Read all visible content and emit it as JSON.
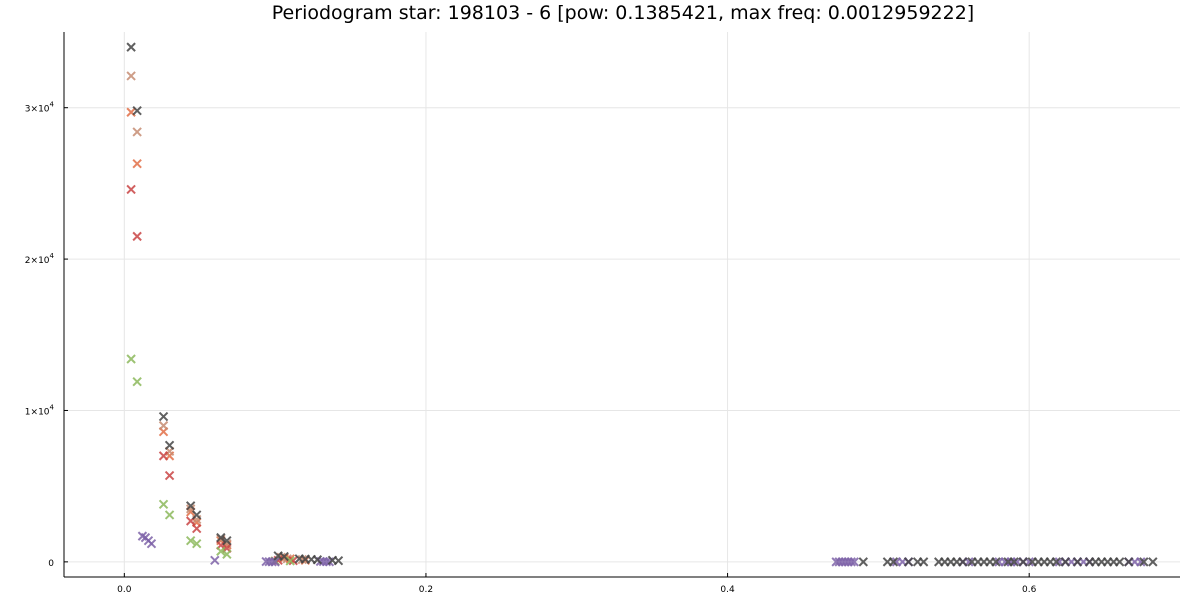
{
  "chart_data": {
    "type": "scatter",
    "title": "Periodogram star: 198103 - 6 [pow: 0.1385421, max freq: 0.0012959222]",
    "xlabel": "",
    "ylabel": "",
    "xlim": [
      -0.04,
      0.7
    ],
    "ylim": [
      -1000,
      35000
    ],
    "grid": true,
    "legend": "none",
    "marker": "x",
    "x_ticks": [
      {
        "value": 0.0,
        "label": "0.0"
      },
      {
        "value": 0.2,
        "label": "0.2"
      },
      {
        "value": 0.4,
        "label": "0.4"
      },
      {
        "value": 0.6,
        "label": "0.6"
      }
    ],
    "y_ticks": [
      {
        "value": 0,
        "mantissa": "0",
        "exponent": ""
      },
      {
        "value": 10000,
        "mantissa": "1×10",
        "exponent": "4"
      },
      {
        "value": 20000,
        "mantissa": "2×10",
        "exponent": "4"
      },
      {
        "value": 30000,
        "mantissa": "3×10",
        "exponent": "4"
      }
    ],
    "series": [
      {
        "color": "#e26f46",
        "points": [
          [
            0.0045,
            29700
          ],
          [
            0.0085,
            26300
          ],
          [
            0.026,
            8600
          ],
          [
            0.03,
            7000
          ],
          [
            0.044,
            3300
          ],
          [
            0.048,
            2600
          ],
          [
            0.064,
            1400
          ],
          [
            0.068,
            1100
          ],
          [
            0.1,
            50
          ],
          [
            0.106,
            250
          ],
          [
            0.11,
            200
          ],
          [
            0.12,
            100
          ]
        ]
      },
      {
        "color": "#c68c72",
        "points": [
          [
            0.0045,
            32100
          ],
          [
            0.0085,
            28400
          ],
          [
            0.026,
            9000
          ],
          [
            0.03,
            7300
          ],
          [
            0.044,
            3500
          ],
          [
            0.048,
            2800
          ],
          [
            0.064,
            1500
          ],
          [
            0.068,
            1200
          ],
          [
            0.104,
            300
          ],
          [
            0.108,
            200
          ],
          [
            0.118,
            150
          ]
        ]
      },
      {
        "color": "#c94444",
        "points": [
          [
            0.0045,
            24600
          ],
          [
            0.0085,
            21500
          ],
          [
            0.026,
            7000
          ],
          [
            0.03,
            5700
          ],
          [
            0.044,
            2700
          ],
          [
            0.048,
            2200
          ],
          [
            0.064,
            1100
          ],
          [
            0.068,
            900
          ],
          [
            0.102,
            100
          ],
          [
            0.112,
            80
          ]
        ]
      },
      {
        "color": "#8cb85c",
        "points": [
          [
            0.0045,
            13400
          ],
          [
            0.0085,
            11900
          ],
          [
            0.026,
            3800
          ],
          [
            0.03,
            3100
          ],
          [
            0.044,
            1400
          ],
          [
            0.048,
            1200
          ],
          [
            0.064,
            700
          ],
          [
            0.068,
            500
          ],
          [
            0.1,
            50
          ],
          [
            0.11,
            60
          ]
        ]
      },
      {
        "color": "#7e63a8",
        "points": [
          [
            0.012,
            1700
          ],
          [
            0.014,
            1600
          ],
          [
            0.016,
            1400
          ],
          [
            0.018,
            1200
          ],
          [
            0.06,
            100
          ],
          [
            0.094,
            20
          ],
          [
            0.096,
            10
          ],
          [
            0.098,
            5
          ],
          [
            0.1,
            0
          ],
          [
            0.13,
            30
          ],
          [
            0.132,
            20
          ],
          [
            0.134,
            10
          ],
          [
            0.136,
            5
          ],
          [
            0.472,
            0
          ],
          [
            0.474,
            0
          ],
          [
            0.476,
            0
          ],
          [
            0.478,
            0
          ],
          [
            0.48,
            0
          ],
          [
            0.482,
            0
          ],
          [
            0.484,
            0
          ],
          [
            0.512,
            0
          ],
          [
            0.516,
            0
          ],
          [
            0.52,
            0
          ],
          [
            0.556,
            0
          ],
          [
            0.56,
            0
          ],
          [
            0.58,
            0
          ],
          [
            0.584,
            0
          ],
          [
            0.588,
            0
          ],
          [
            0.592,
            0
          ],
          [
            0.596,
            0
          ],
          [
            0.6,
            0
          ],
          [
            0.62,
            0
          ],
          [
            0.624,
            0
          ],
          [
            0.628,
            0
          ],
          [
            0.632,
            0
          ],
          [
            0.636,
            0
          ],
          [
            0.64,
            0
          ],
          [
            0.666,
            0
          ],
          [
            0.67,
            0
          ],
          [
            0.674,
            0
          ]
        ]
      },
      {
        "color": "#444444",
        "points": [
          [
            0.0045,
            34000
          ],
          [
            0.0085,
            29800
          ],
          [
            0.026,
            9600
          ],
          [
            0.03,
            7700
          ],
          [
            0.044,
            3700
          ],
          [
            0.048,
            3100
          ],
          [
            0.064,
            1600
          ],
          [
            0.068,
            1400
          ],
          [
            0.102,
            400
          ],
          [
            0.106,
            350
          ],
          [
            0.116,
            200
          ],
          [
            0.12,
            180
          ],
          [
            0.124,
            160
          ],
          [
            0.128,
            140
          ],
          [
            0.138,
            100
          ],
          [
            0.142,
            80
          ],
          [
            0.49,
            0
          ],
          [
            0.506,
            0
          ],
          [
            0.51,
            0
          ],
          [
            0.52,
            0
          ],
          [
            0.526,
            0
          ],
          [
            0.53,
            0
          ],
          [
            0.54,
            0
          ],
          [
            0.544,
            0
          ],
          [
            0.548,
            0
          ],
          [
            0.552,
            0
          ],
          [
            0.556,
            0
          ],
          [
            0.562,
            0
          ],
          [
            0.566,
            0
          ],
          [
            0.57,
            0
          ],
          [
            0.574,
            0
          ],
          [
            0.578,
            0
          ],
          [
            0.586,
            0
          ],
          [
            0.59,
            0
          ],
          [
            0.596,
            0
          ],
          [
            0.602,
            0
          ],
          [
            0.606,
            0
          ],
          [
            0.61,
            0
          ],
          [
            0.614,
            0
          ],
          [
            0.618,
            0
          ],
          [
            0.624,
            0
          ],
          [
            0.632,
            0
          ],
          [
            0.64,
            0
          ],
          [
            0.644,
            0
          ],
          [
            0.648,
            0
          ],
          [
            0.652,
            0
          ],
          [
            0.656,
            0
          ],
          [
            0.66,
            0
          ],
          [
            0.666,
            0
          ],
          [
            0.676,
            0
          ],
          [
            0.682,
            0
          ]
        ]
      }
    ]
  }
}
